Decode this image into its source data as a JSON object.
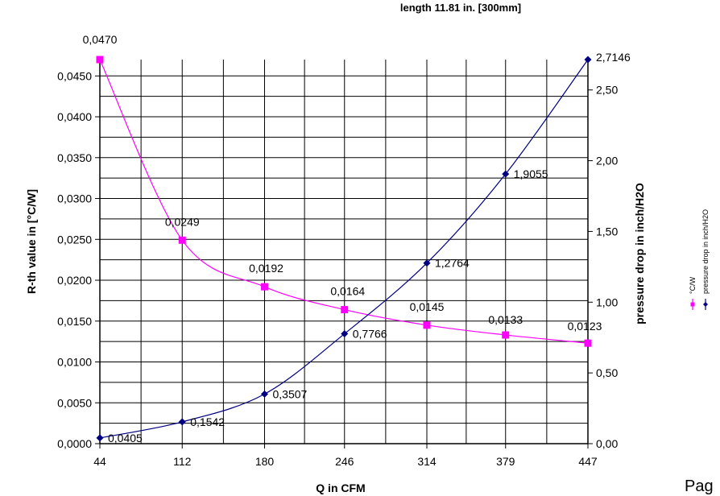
{
  "chart_data": {
    "type": "line",
    "title": "length 11.81 in. [300mm]",
    "xlabel": "Q in CFM",
    "ylabel": "R-th value in [°C/W]",
    "y2label": "pressure drop in inch/H2O",
    "categories": [
      "44",
      "112",
      "180",
      "246",
      "314",
      "379",
      "447"
    ],
    "x": [
      44,
      112,
      180,
      246,
      314,
      379,
      447
    ],
    "ylim": [
      0,
      0.047
    ],
    "y2lim": [
      0,
      2.7146
    ],
    "y_ticks": [
      "0,0000",
      "0,0050",
      "0,0100",
      "0,0150",
      "0,0200",
      "0,0250",
      "0,0300",
      "0,0350",
      "0,0400",
      "0,0450"
    ],
    "y2_ticks": [
      "0,00",
      "0,50",
      "1,00",
      "1,50",
      "2,00",
      "2,50"
    ],
    "grid": true,
    "legend_position": "right",
    "series": [
      {
        "name": "°C/W",
        "axis": "left",
        "color": "#ff00ff",
        "marker": "square",
        "values": [
          0.047,
          0.0249,
          0.0192,
          0.0164,
          0.0145,
          0.0133,
          0.0123
        ],
        "labels": [
          "0,0470",
          "0,0249",
          "0,0192",
          "0,0164",
          "0,0145",
          "0,0133",
          "0,0123"
        ]
      },
      {
        "name": "pressure drop in inch/H2O",
        "axis": "right",
        "color": "#000080",
        "marker": "diamond",
        "values": [
          0.0405,
          0.1542,
          0.3507,
          0.7766,
          1.2764,
          1.9055,
          2.7146
        ],
        "labels": [
          "0,0405",
          "0,1542",
          "0,3507",
          "0,7766",
          "1,2764",
          "1,9055",
          "2,7146"
        ]
      }
    ]
  },
  "page_label": "Pag"
}
